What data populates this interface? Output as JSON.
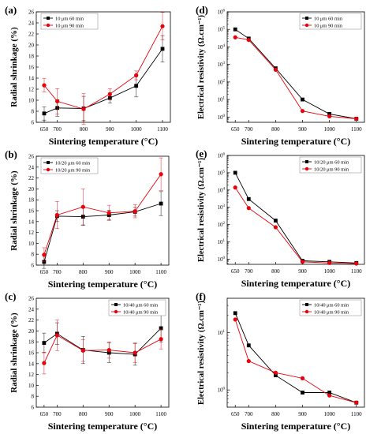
{
  "colors": {
    "series_60": "#000000",
    "series_90": "#e8000b"
  },
  "chart_data": [
    {
      "type": "scatter",
      "panel": "(a)",
      "xlabel": "Sintering temperature (°C)",
      "ylabel": "Radial shrinkage (%)",
      "scale": "linear",
      "xlim": [
        620,
        1130
      ],
      "ylim": [
        6,
        26
      ],
      "yticks": [
        6,
        8,
        10,
        12,
        14,
        16,
        18,
        20,
        22,
        24,
        26
      ],
      "x": [
        650,
        700,
        800,
        900,
        1000,
        1100
      ],
      "xticks": [
        650,
        700,
        800,
        900,
        1000,
        1100
      ],
      "legend": "top-left",
      "series": [
        {
          "name": "10 μm 60 min",
          "marker": "square",
          "values": [
            7.6,
            8.6,
            8.5,
            10.4,
            12.6,
            19.3
          ],
          "err": [
            1.2,
            1.5,
            2.2,
            0.9,
            2.0,
            2.4
          ]
        },
        {
          "name": "10 μm 90 min",
          "marker": "circle",
          "values": [
            12.7,
            9.8,
            8.4,
            11.1,
            14.5,
            23.4
          ],
          "err": [
            1.2,
            2.3,
            2.8,
            1.0,
            0.8,
            2.5
          ]
        }
      ]
    },
    {
      "type": "scatter",
      "panel": "(b)",
      "xlabel": "Sintering temperature (°C)",
      "ylabel": "Radial shrinkage (%)",
      "scale": "linear",
      "xlim": [
        620,
        1130
      ],
      "ylim": [
        6,
        26
      ],
      "yticks": [
        6,
        8,
        10,
        12,
        14,
        16,
        18,
        20,
        22,
        24,
        26
      ],
      "x": [
        650,
        700,
        800,
        900,
        1000,
        1100
      ],
      "xticks": [
        650,
        700,
        800,
        900,
        1000,
        1100
      ],
      "legend": "top-left",
      "series": [
        {
          "name": "10/20 μm 60 min",
          "marker": "square",
          "values": [
            6.6,
            15.0,
            14.9,
            15.2,
            15.8,
            17.3
          ],
          "err": [
            1.2,
            1.0,
            1.6,
            0.9,
            0.8,
            2.2
          ]
        },
        {
          "name": "10/20 μm 90 min",
          "marker": "circle",
          "values": [
            7.9,
            15.2,
            16.7,
            15.6,
            15.9,
            22.7
          ],
          "err": [
            1.3,
            2.5,
            3.3,
            1.4,
            1.2,
            3.0
          ]
        }
      ]
    },
    {
      "type": "scatter",
      "panel": "(c)",
      "xlabel": "Sintering temperature (°C)",
      "ylabel": "Radial shrinkage (%)",
      "scale": "linear",
      "xlim": [
        620,
        1130
      ],
      "ylim": [
        6,
        26
      ],
      "yticks": [
        6,
        8,
        10,
        12,
        14,
        16,
        18,
        20,
        22,
        24,
        26
      ],
      "x": [
        650,
        700,
        800,
        900,
        1000,
        1100
      ],
      "xticks": [
        650,
        700,
        800,
        900,
        1000,
        1100
      ],
      "legend": "top-right",
      "series": [
        {
          "name": "10/40 μm 60 min",
          "marker": "square",
          "values": [
            17.8,
            19.5,
            16.5,
            16.0,
            15.7,
            20.5
          ],
          "err": [
            1.8,
            2.0,
            2.5,
            1.8,
            2.0,
            2.5
          ]
        },
        {
          "name": "10/40 μm 90 min",
          "marker": "circle",
          "values": [
            14.1,
            19.2,
            16.4,
            16.5,
            16.0,
            18.5
          ],
          "err": [
            2.0,
            2.8,
            2.0,
            1.5,
            1.8,
            1.8
          ]
        }
      ]
    },
    {
      "type": "line",
      "panel": "(d)",
      "xlabel": "Sintering temperature (°C)",
      "ylabel": "Electrical resistivity (Ω.cm⁻¹)",
      "scale": "log",
      "xlim": [
        620,
        1130
      ],
      "ylim": [
        0.5,
        1000000
      ],
      "yticks_exp": [
        0,
        1,
        2,
        3,
        4,
        5,
        6
      ],
      "x": [
        650,
        700,
        800,
        900,
        1000,
        1100
      ],
      "xticks": [
        650,
        700,
        800,
        900,
        1000,
        1100
      ],
      "legend": "top-right",
      "series": [
        {
          "name": "10 μm 60 min",
          "marker": "square",
          "values": [
            100000,
            30000,
            600,
            10,
            1.5,
            0.8
          ]
        },
        {
          "name": "10 μm 90 min",
          "marker": "circle",
          "values": [
            35000,
            25000,
            500,
            2.2,
            1.1,
            0.8
          ]
        }
      ]
    },
    {
      "type": "line",
      "panel": "(e)",
      "xlabel": "Sintering temperature (°C)",
      "ylabel": "Electrical resistivity (Ω.cm⁻¹)",
      "scale": "log",
      "xlim": [
        620,
        1130
      ],
      "ylim": [
        0.5,
        1000000
      ],
      "yticks_exp": [
        0,
        1,
        2,
        3,
        4,
        5,
        6
      ],
      "x": [
        650,
        700,
        800,
        900,
        1000,
        1100
      ],
      "xticks": [
        650,
        700,
        800,
        900,
        1000,
        1100
      ],
      "legend": "top-right",
      "series": [
        {
          "name": "10/20 μm 60 min",
          "marker": "square",
          "values": [
            100000,
            3000,
            170,
            0.8,
            0.7,
            0.6
          ]
        },
        {
          "name": "10/20 μm 90 min",
          "marker": "circle",
          "values": [
            14000,
            900,
            70,
            0.7,
            0.6,
            0.55
          ]
        }
      ]
    },
    {
      "type": "line",
      "panel": "(f)",
      "xlabel": "Sintering temperature (°C)",
      "ylabel": "Electrical resistivity (Ω.cm⁻¹)",
      "scale": "log",
      "xlim": [
        620,
        1130
      ],
      "ylim": [
        0.5,
        40
      ],
      "yticks_exp": [
        0,
        1
      ],
      "x": [
        650,
        700,
        800,
        900,
        1000,
        1100
      ],
      "xticks": [
        650,
        700,
        800,
        900,
        1000,
        1100
      ],
      "legend": "top-right",
      "series": [
        {
          "name": "10/40 μm 60 min",
          "marker": "square",
          "values": [
            22,
            6,
            1.8,
            0.9,
            0.9,
            0.6
          ]
        },
        {
          "name": "10/40 μm 90 min",
          "marker": "circle",
          "values": [
            17,
            3.2,
            2.0,
            1.6,
            0.8,
            0.6
          ]
        }
      ]
    }
  ]
}
